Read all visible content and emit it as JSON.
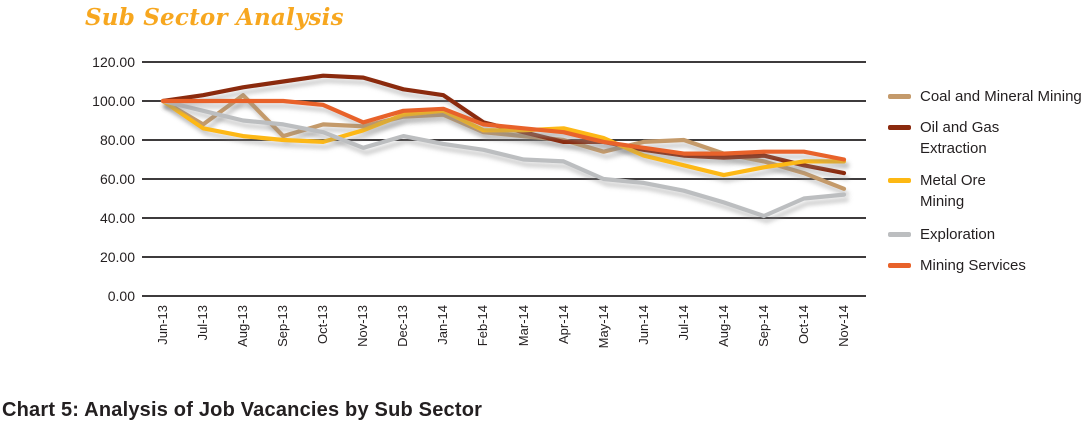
{
  "title": "Sub Sector Analysis",
  "caption": "Chart 5: Analysis of Job Vacancies by Sub Sector",
  "colors": {
    "title_accent": "#F7A71F",
    "text": "#231F20",
    "grid": "#231F20"
  },
  "chart_data": {
    "type": "line",
    "title": "Sub Sector Analysis",
    "categories": [
      "Jun-13",
      "Jul-13",
      "Aug-13",
      "Sep-13",
      "Oct-13",
      "Nov-13",
      "Dec-13",
      "Jan-14",
      "Feb-14",
      "Mar-14",
      "Apr-14",
      "May-14",
      "Jun-14",
      "Jul-14",
      "Aug-14",
      "Sep-14",
      "Oct-14",
      "Nov-14"
    ],
    "series": [
      {
        "name": "Coal and Mineral Mining",
        "legend_lines": [
          "Coal and Mineral Mining"
        ],
        "color": "#C49A6B",
        "values": [
          100,
          88,
          103,
          82,
          88,
          87,
          92,
          93,
          84,
          82,
          80,
          74,
          79,
          80,
          73,
          69,
          63,
          55
        ]
      },
      {
        "name": "Oil and Gas Extraction",
        "legend_lines": [
          "Oil and Gas",
          "Extraction"
        ],
        "color": "#8B2A0E",
        "values": [
          100,
          103,
          107,
          110,
          113,
          112,
          106,
          103,
          89,
          84,
          79,
          79,
          75,
          72,
          71,
          72,
          67,
          63
        ]
      },
      {
        "name": "Metal Ore Mining",
        "legend_lines": [
          "Metal Ore",
          "Mining"
        ],
        "color": "#FDB813",
        "values": [
          100,
          86,
          82,
          80,
          79,
          85,
          93,
          95,
          85,
          85,
          86,
          81,
          72,
          67,
          62,
          66,
          69,
          69
        ]
      },
      {
        "name": "Exploration",
        "legend_lines": [
          "Exploration"
        ],
        "color": "#BCBEC0",
        "values": [
          100,
          95,
          90,
          88,
          84,
          76,
          82,
          78,
          75,
          70,
          69,
          60,
          58,
          54,
          48,
          41,
          50,
          52
        ]
      },
      {
        "name": "Mining Services",
        "legend_lines": [
          "Mining Services"
        ],
        "color": "#E8622A",
        "values": [
          100,
          100,
          100,
          100,
          98,
          89,
          95,
          96,
          88,
          86,
          84,
          79,
          76,
          73,
          73,
          74,
          74,
          70
        ]
      }
    ],
    "ylim": [
      0,
      120
    ],
    "ytick_step": 20,
    "ytick_labels": [
      "0.00",
      "20.00",
      "40.00",
      "60.00",
      "80.00",
      "100.00",
      "120.00"
    ],
    "grid": true,
    "legend_position": "right",
    "xlabel": "",
    "ylabel": ""
  }
}
